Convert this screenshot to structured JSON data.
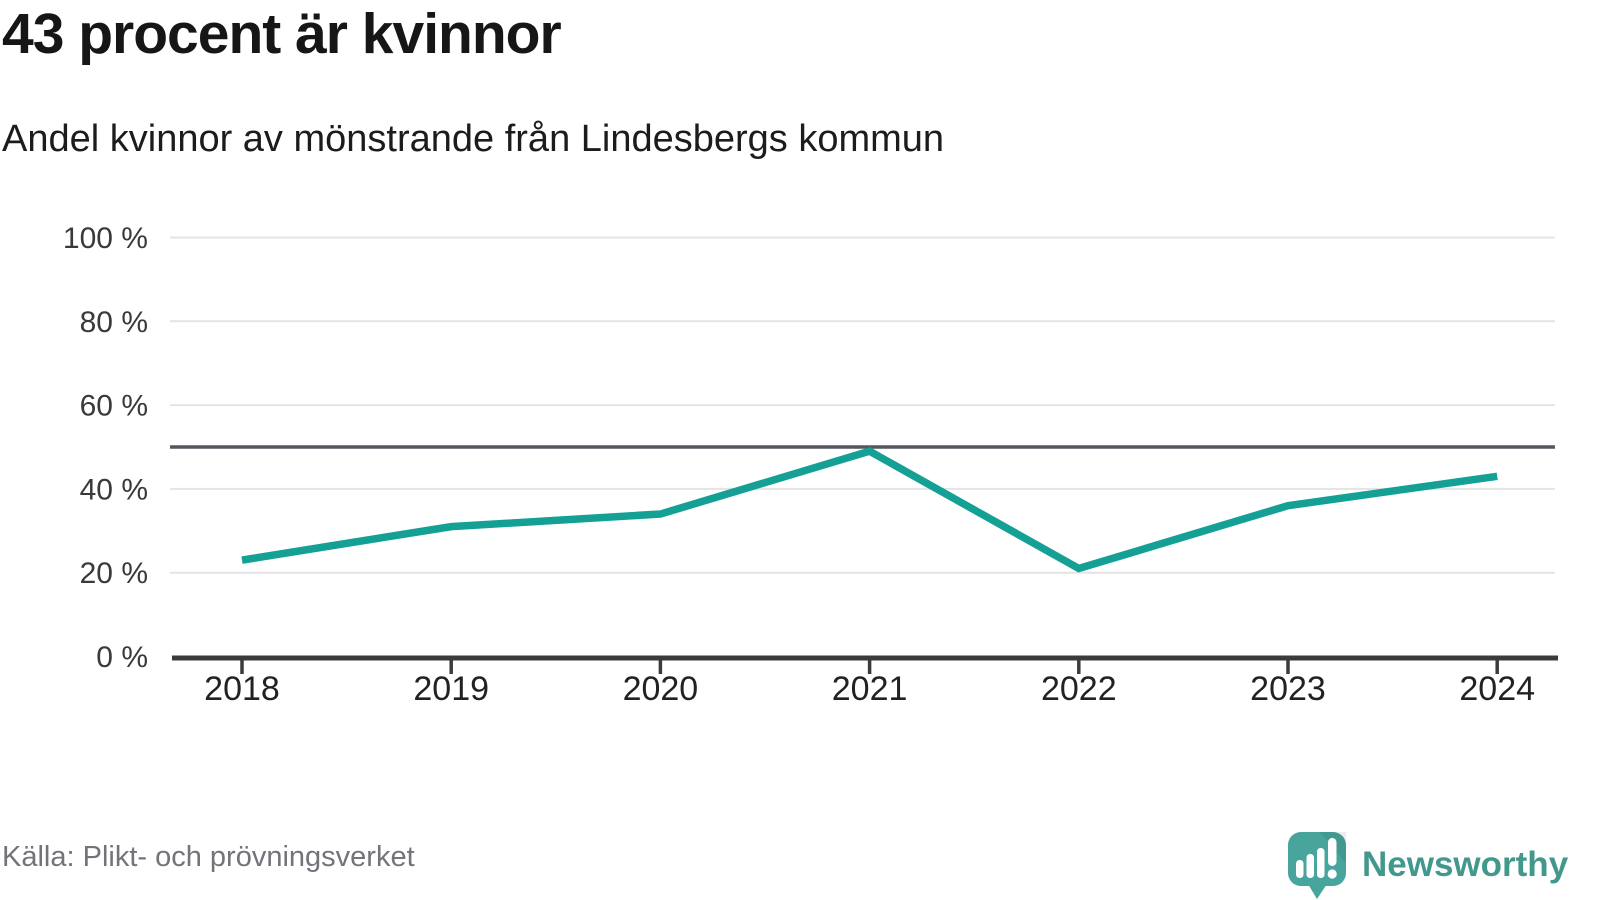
{
  "chart_data": {
    "type": "line",
    "title": "43 procent är kvinnor",
    "subtitle": "Andel kvinnor av mönstrande från Lindesbergs kommun",
    "x": [
      2018,
      2019,
      2020,
      2021,
      2022,
      2023,
      2024
    ],
    "series": [
      {
        "name": "Andel kvinnor av mönstrande",
        "values": [
          23,
          31,
          34,
          49,
          21,
          36,
          43
        ]
      }
    ],
    "unit": "%",
    "ylim": [
      0,
      100
    ],
    "yticks": [
      0,
      20,
      40,
      60,
      80,
      100
    ],
    "ytick_format": "{v} %",
    "reference_line": 50,
    "grid": true,
    "legend": "none",
    "line_color": "#14a094",
    "grid_color": "#e4e4e4",
    "reference_line_color": "#545760",
    "axis_color": "#3b3b3b",
    "tick_label_color": "#3a3a3a",
    "source": "Källa: Plikt- och prövningsverket"
  },
  "branding": {
    "name": "Newsworthy",
    "logo_icon": "speech-bubble-bar-chart-icon",
    "color": "#43988e",
    "logo_fill": "#47a59d"
  }
}
